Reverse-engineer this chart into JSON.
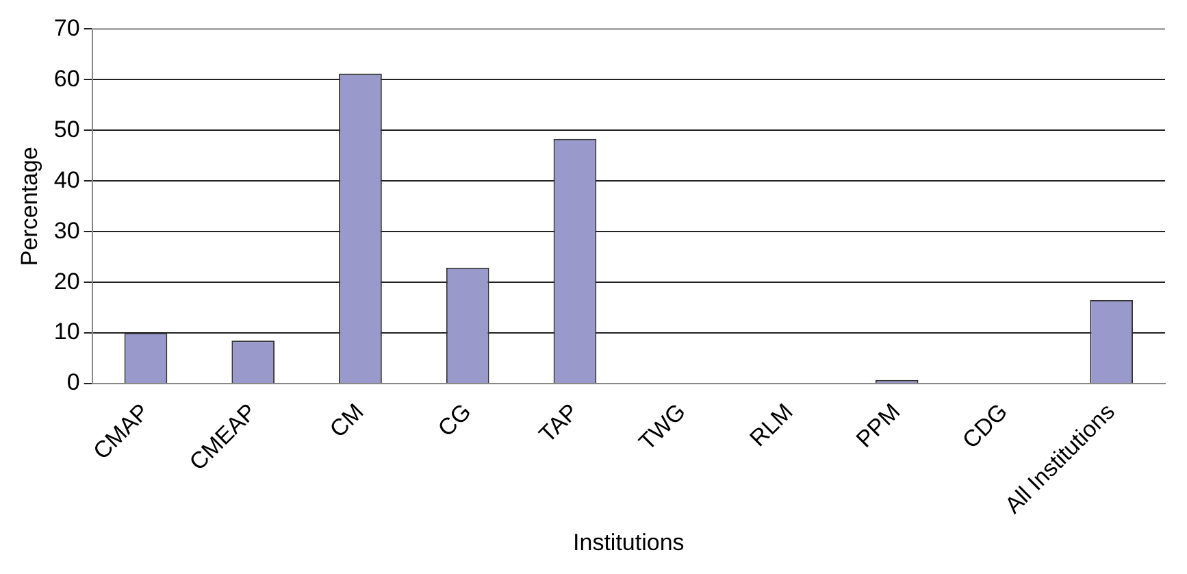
{
  "chart_data": {
    "type": "bar",
    "xlabel": "Institutions",
    "ylabel": "Percentage",
    "categories": [
      "CMAP",
      "CMEAP",
      "CM",
      "CG",
      "TAP",
      "TWG",
      "RLM",
      "PPM",
      "CDG",
      "All Institutions"
    ],
    "values": [
      10,
      8.5,
      61.2,
      22.9,
      48.3,
      0,
      0,
      0.7,
      0,
      16.5
    ],
    "color": "#9999cc",
    "ylim": [
      0,
      70
    ],
    "yticks": [
      0,
      10,
      20,
      30,
      40,
      50,
      60,
      70
    ],
    "grid": "y",
    "legend": false
  }
}
